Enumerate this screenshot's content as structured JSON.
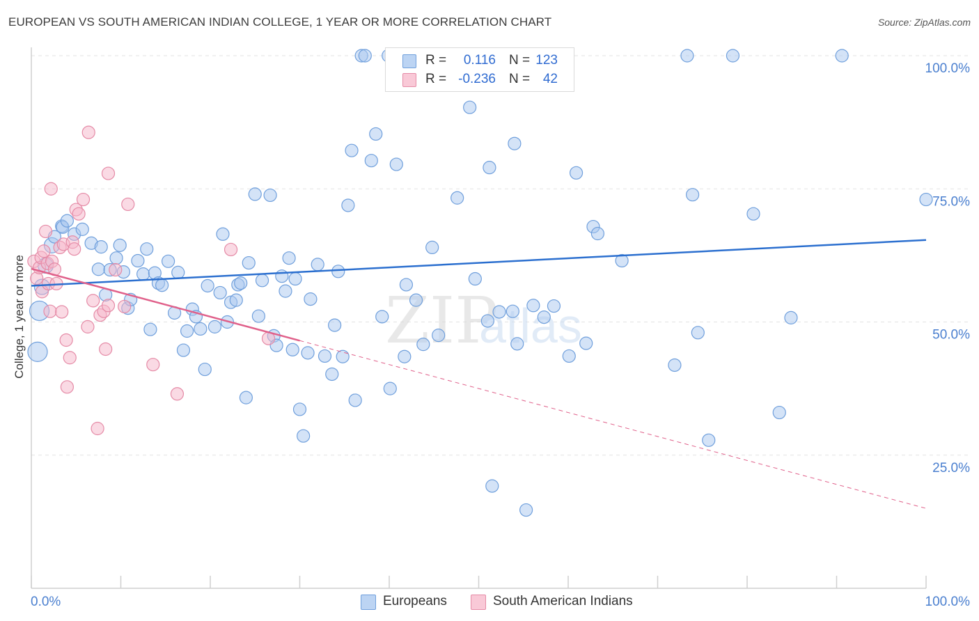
{
  "title": "EUROPEAN VS SOUTH AMERICAN INDIAN COLLEGE, 1 YEAR OR MORE CORRELATION CHART",
  "source": "Source: ZipAtlas.com",
  "watermark": {
    "zip": "ZIP",
    "atlas": "atlas"
  },
  "legend": {
    "rows": [
      {
        "r_label": "R =",
        "r_value": "0.116",
        "n_label": "N =",
        "n_value": "123"
      },
      {
        "r_label": "R =",
        "r_value": "-0.236",
        "n_label": "N =",
        "n_value": "42"
      }
    ]
  },
  "bottom_legend": {
    "europeans": "Europeans",
    "south_american_indians": "South American Indians"
  },
  "colors": {
    "blue_fill": "#aac8ef",
    "blue_stroke": "#6f9fdc",
    "blue_line": "#2b6fcf",
    "pink_fill": "#f6b6c9",
    "pink_stroke": "#e58aa6",
    "pink_line": "#e0608a",
    "tick_label": "#4a7fcf",
    "grid": "#e2e2e2"
  },
  "chart_data": {
    "type": "scatter",
    "title": "EUROPEAN VS SOUTH AMERICAN INDIAN COLLEGE, 1 YEAR OR MORE CORRELATION CHART",
    "xlabel": "",
    "ylabel": "College, 1 year or more",
    "xlim": [
      0,
      100
    ],
    "ylim": [
      0,
      102
    ],
    "x_tick_labels": [
      "0.0%",
      "100.0%"
    ],
    "y_ticks": [
      25,
      50,
      75,
      100
    ],
    "y_tick_labels": [
      "25.0%",
      "50.0%",
      "75.0%",
      "100.0%"
    ],
    "grid": true,
    "series": [
      {
        "name": "Europeans",
        "R": 0.116,
        "N": 123,
        "trend": {
          "x": [
            0,
            100
          ],
          "y": [
            56.8,
            65.4
          ],
          "dashed_from": null
        },
        "points": [
          [
            0.7,
            44.4,
            "L"
          ],
          [
            0.9,
            52.1,
            "L"
          ],
          [
            1.2,
            56.6,
            "M"
          ],
          [
            1.6,
            60.6,
            "M"
          ],
          [
            2.3,
            64.4,
            "M"
          ],
          [
            2.6,
            66.0
          ],
          [
            3.4,
            68.0
          ],
          [
            3.5,
            67.8
          ],
          [
            4.0,
            69.0
          ],
          [
            4.8,
            66.5
          ],
          [
            5.7,
            67.4
          ],
          [
            6.7,
            64.8
          ],
          [
            7.5,
            59.9
          ],
          [
            7.8,
            64.1
          ],
          [
            8.3,
            55.1
          ],
          [
            8.8,
            59.8
          ],
          [
            9.5,
            62.0
          ],
          [
            9.9,
            64.4
          ],
          [
            10.3,
            59.4
          ],
          [
            10.8,
            52.6
          ],
          [
            11.1,
            54.2
          ],
          [
            11.9,
            61.5
          ],
          [
            12.5,
            59.0
          ],
          [
            12.9,
            63.7
          ],
          [
            13.3,
            48.6
          ],
          [
            13.8,
            59.2
          ],
          [
            14.2,
            57.3
          ],
          [
            14.6,
            56.9
          ],
          [
            15.3,
            61.4
          ],
          [
            16.0,
            51.7
          ],
          [
            16.4,
            59.3
          ],
          [
            17.0,
            44.7
          ],
          [
            17.4,
            48.3
          ],
          [
            18.0,
            52.4
          ],
          [
            18.4,
            51.0
          ],
          [
            18.9,
            48.7
          ],
          [
            19.4,
            41.1
          ],
          [
            19.7,
            56.8
          ],
          [
            20.5,
            49.1
          ],
          [
            21.1,
            55.5
          ],
          [
            21.4,
            66.5
          ],
          [
            21.9,
            50.0
          ],
          [
            22.3,
            53.7
          ],
          [
            22.9,
            54.1
          ],
          [
            23.1,
            57.0
          ],
          [
            23.4,
            57.3
          ],
          [
            24.0,
            35.8
          ],
          [
            24.3,
            61.1
          ],
          [
            25.0,
            74.0
          ],
          [
            25.4,
            51.1
          ],
          [
            25.8,
            57.8
          ],
          [
            26.7,
            73.8
          ],
          [
            27.1,
            47.4
          ],
          [
            27.4,
            45.6
          ],
          [
            28.0,
            58.6
          ],
          [
            28.4,
            55.8
          ],
          [
            28.8,
            62.0
          ],
          [
            29.2,
            44.8
          ],
          [
            29.5,
            58.1
          ],
          [
            30.0,
            33.6
          ],
          [
            30.4,
            28.6
          ],
          [
            30.9,
            44.2
          ],
          [
            31.2,
            54.3
          ],
          [
            32.0,
            60.8
          ],
          [
            32.8,
            43.6
          ],
          [
            33.6,
            40.2
          ],
          [
            33.9,
            49.4
          ],
          [
            34.3,
            59.5
          ],
          [
            34.8,
            43.5
          ],
          [
            35.4,
            71.9
          ],
          [
            35.8,
            82.2
          ],
          [
            36.2,
            35.3
          ],
          [
            36.9,
            100.0
          ],
          [
            37.3,
            100.0
          ],
          [
            38.0,
            80.3
          ],
          [
            38.5,
            85.3
          ],
          [
            39.2,
            51.0
          ],
          [
            39.9,
            100.0
          ],
          [
            40.1,
            37.5
          ],
          [
            40.8,
            79.6
          ],
          [
            41.7,
            43.5
          ],
          [
            41.9,
            57.0
          ],
          [
            42.2,
            96.0
          ],
          [
            43.0,
            54.1
          ],
          [
            43.8,
            45.8
          ],
          [
            44.8,
            64.0
          ],
          [
            45.5,
            47.5
          ],
          [
            46.8,
            100.0
          ],
          [
            47.6,
            73.3
          ],
          [
            49.0,
            90.3
          ],
          [
            49.6,
            58.1
          ],
          [
            50.0,
            100.0
          ],
          [
            51.0,
            50.2
          ],
          [
            51.2,
            79.0
          ],
          [
            51.5,
            19.2
          ],
          [
            52.3,
            51.9
          ],
          [
            53.6,
            96.0
          ],
          [
            53.8,
            52.0
          ],
          [
            54.0,
            83.5
          ],
          [
            54.3,
            45.9
          ],
          [
            55.3,
            14.7
          ],
          [
            56.1,
            53.1
          ],
          [
            57.3,
            50.9
          ],
          [
            58.4,
            53.0
          ],
          [
            60.1,
            43.6
          ],
          [
            60.9,
            78.0
          ],
          [
            62.0,
            46.0
          ],
          [
            62.8,
            67.9
          ],
          [
            63.3,
            66.6
          ],
          [
            66.0,
            61.5
          ],
          [
            71.9,
            41.9
          ],
          [
            73.3,
            100.0
          ],
          [
            73.9,
            73.9
          ],
          [
            74.5,
            48.0
          ],
          [
            75.7,
            27.8
          ],
          [
            78.4,
            100.0
          ],
          [
            80.7,
            70.3
          ],
          [
            83.6,
            33.0
          ],
          [
            84.9,
            50.8
          ],
          [
            90.6,
            100.0
          ],
          [
            100.0,
            73.0
          ]
        ]
      },
      {
        "name": "South American Indians",
        "R": -0.236,
        "N": 42,
        "trend": {
          "x": [
            0,
            100
          ],
          "y": [
            60.0,
            15.0
          ],
          "dashed_from": 30.0
        },
        "points": [
          [
            0.3,
            61.4
          ],
          [
            0.6,
            58.2
          ],
          [
            0.9,
            60.2
          ],
          [
            1.1,
            62.1
          ],
          [
            1.2,
            55.7
          ],
          [
            1.4,
            63.3
          ],
          [
            1.6,
            67.0
          ],
          [
            1.8,
            61.0
          ],
          [
            1.9,
            57.2
          ],
          [
            2.1,
            52.0
          ],
          [
            2.3,
            61.4
          ],
          [
            2.2,
            75.0
          ],
          [
            2.6,
            59.9
          ],
          [
            2.8,
            57.2
          ],
          [
            3.2,
            64.0
          ],
          [
            3.4,
            51.9
          ],
          [
            3.6,
            64.6
          ],
          [
            3.9,
            46.6
          ],
          [
            4.0,
            37.8
          ],
          [
            4.3,
            43.3
          ],
          [
            4.6,
            65.0
          ],
          [
            4.8,
            63.7
          ],
          [
            5.0,
            71.1
          ],
          [
            5.3,
            70.3
          ],
          [
            5.8,
            73.0
          ],
          [
            6.3,
            49.1
          ],
          [
            6.4,
            85.6
          ],
          [
            6.9,
            54.0
          ],
          [
            7.4,
            30.0
          ],
          [
            7.7,
            51.3
          ],
          [
            8.1,
            52.0
          ],
          [
            8.3,
            44.9
          ],
          [
            8.6,
            53.1
          ],
          [
            8.6,
            77.9
          ],
          [
            9.4,
            59.8
          ],
          [
            10.4,
            52.9
          ],
          [
            10.8,
            72.1
          ],
          [
            13.6,
            42.0
          ],
          [
            16.3,
            36.5
          ],
          [
            22.3,
            63.6
          ],
          [
            26.5,
            46.9
          ]
        ]
      }
    ]
  }
}
